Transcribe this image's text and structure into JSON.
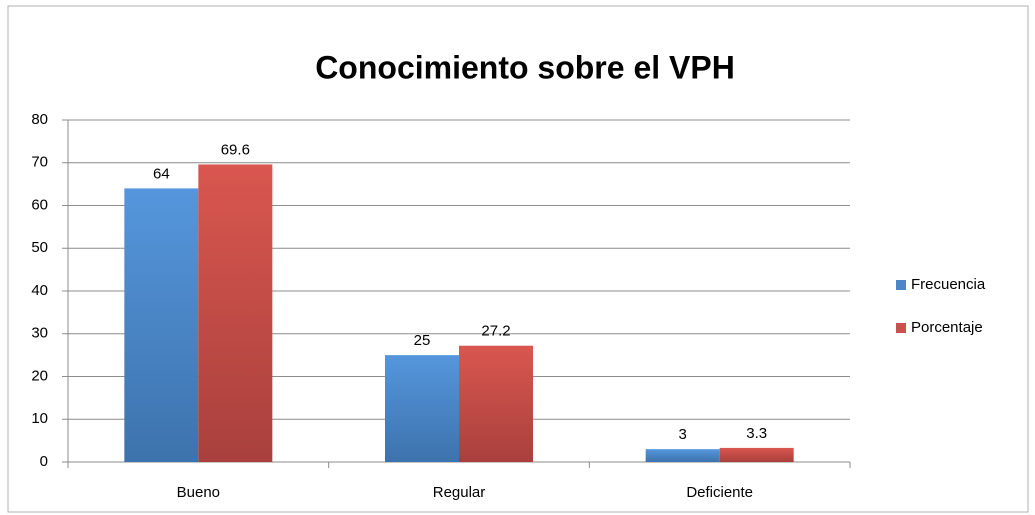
{
  "chart_data": {
    "type": "bar",
    "title": "Conocimiento sobre el VPH",
    "categories": [
      "Bueno",
      "Regular",
      "Deficiente"
    ],
    "series": [
      {
        "name": "Frecuencia",
        "color": "#4a86c8",
        "values": [
          64,
          25,
          3
        ]
      },
      {
        "name": "Porcentaje",
        "color": "#c9514e",
        "values": [
          69.6,
          27.2,
          3.3
        ]
      }
    ],
    "ylim": [
      0,
      80
    ],
    "yticks": [
      0,
      10,
      20,
      30,
      40,
      50,
      60,
      70,
      80
    ],
    "grid": true,
    "legend": "right"
  }
}
